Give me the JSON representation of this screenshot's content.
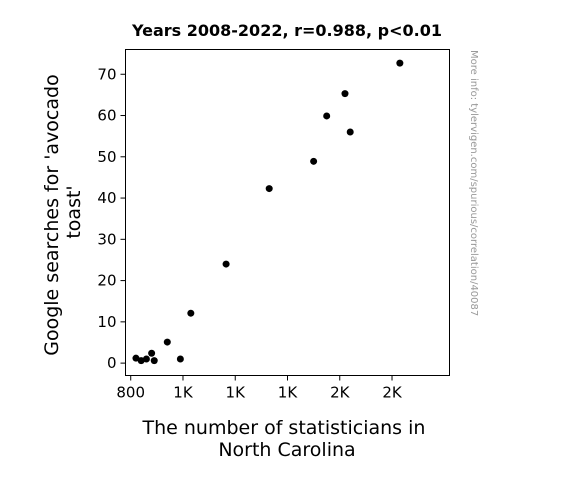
{
  "chart_data": {
    "type": "scatter",
    "title": "Years 2008-2022, r=0.988, p<0.01",
    "xlabel_lines": [
      "The number of statisticians in",
      "North Carolina"
    ],
    "ylabel_lines": [
      "Google searches for 'avocado",
      "toast'"
    ],
    "watermark": "More info: tylervigen.com/spurious/correlation/40087",
    "xlim": [
      780,
      2020
    ],
    "ylim": [
      -3,
      76
    ],
    "x_ticks": [
      {
        "value": 800,
        "label": "800"
      },
      {
        "value": 1000,
        "label": "1K"
      },
      {
        "value": 1200,
        "label": "1K"
      },
      {
        "value": 1400,
        "label": "1K"
      },
      {
        "value": 1600,
        "label": "2K"
      },
      {
        "value": 1800,
        "label": "2K"
      }
    ],
    "y_ticks": [
      {
        "value": 0,
        "label": "0"
      },
      {
        "value": 10,
        "label": "10"
      },
      {
        "value": 20,
        "label": "20"
      },
      {
        "value": 30,
        "label": "30"
      },
      {
        "value": 40,
        "label": "40"
      },
      {
        "value": 50,
        "label": "50"
      },
      {
        "value": 60,
        "label": "60"
      },
      {
        "value": 70,
        "label": "70"
      }
    ],
    "points": [
      {
        "x": 820,
        "y": 1.2
      },
      {
        "x": 840,
        "y": 0.6
      },
      {
        "x": 860,
        "y": 1.0
      },
      {
        "x": 880,
        "y": 2.4
      },
      {
        "x": 890,
        "y": 0.6
      },
      {
        "x": 940,
        "y": 5.1
      },
      {
        "x": 990,
        "y": 1.0
      },
      {
        "x": 1030,
        "y": 12.1
      },
      {
        "x": 1165,
        "y": 24.0
      },
      {
        "x": 1330,
        "y": 42.3
      },
      {
        "x": 1500,
        "y": 48.9
      },
      {
        "x": 1550,
        "y": 59.9
      },
      {
        "x": 1620,
        "y": 65.3
      },
      {
        "x": 1640,
        "y": 56.0
      },
      {
        "x": 1830,
        "y": 72.7
      }
    ],
    "colors": {
      "marker": "#000000",
      "axes": "#000000",
      "watermark": "#999999"
    }
  }
}
